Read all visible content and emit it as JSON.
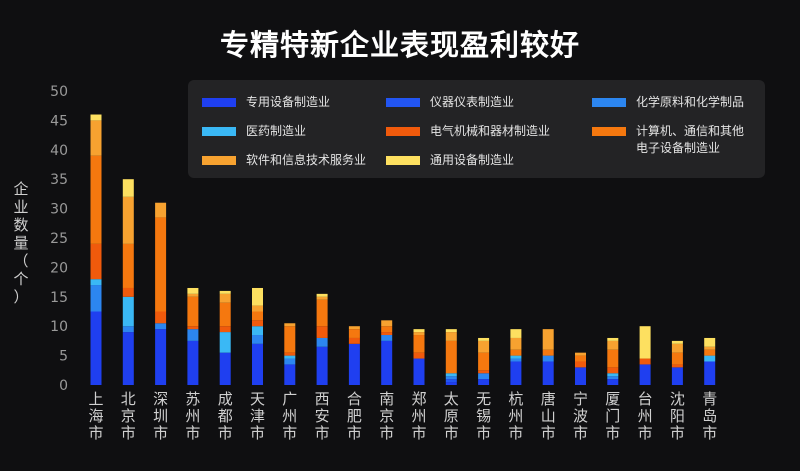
{
  "chart_data": {
    "type": "bar",
    "stacked": true,
    "title": "专精特新企业表现盈利较好",
    "ylabel": "企业数量（个）",
    "ylim": [
      0,
      50
    ],
    "yticks": [
      "0",
      "5",
      "10",
      "15",
      "20",
      "25",
      "30",
      "35",
      "40",
      "45",
      "50"
    ],
    "legend_position": "top-right",
    "categories": [
      "上海市",
      "北京市",
      "深圳市",
      "苏州市",
      "成都市",
      "天津市",
      "广州市",
      "西安市",
      "合肥市",
      "南京市",
      "郑州市",
      "太原市",
      "无锡市",
      "杭州市",
      "唐山市",
      "宁波市",
      "厦门市",
      "台州市",
      "沈阳市",
      "青岛市"
    ],
    "series": [
      {
        "name": "专用设备制造业",
        "color": "#1f3ff0",
        "values": [
          12.5,
          9.0,
          9.5,
          7.5,
          5.5,
          7.0,
          3.5,
          6.5,
          7.0,
          7.5,
          4.5,
          0.5,
          1.0,
          4.0,
          4.0,
          3.0,
          1.0,
          3.5,
          3.0,
          4.0
        ]
      },
      {
        "name": "仪器仪表制造业",
        "color": "#2255f2",
        "values": [
          0.0,
          0.0,
          0.0,
          0.0,
          0.0,
          0.0,
          0.0,
          0.0,
          0.0,
          0.0,
          0.0,
          0.5,
          0.0,
          0.0,
          0.0,
          0.0,
          0.0,
          0.0,
          0.0,
          0.0
        ]
      },
      {
        "name": "化学原料和化学制品",
        "color": "#2c86f0",
        "values": [
          4.5,
          1.0,
          1.0,
          2.0,
          0.0,
          1.5,
          1.0,
          1.5,
          0.0,
          1.0,
          0.0,
          0.5,
          1.0,
          0.5,
          1.0,
          0.0,
          0.5,
          0.0,
          0.0,
          0.0
        ]
      },
      {
        "name": "医药制造业",
        "color": "#3ab8f5",
        "values": [
          1.0,
          5.0,
          0.0,
          0.0,
          3.5,
          1.5,
          0.5,
          0.0,
          0.0,
          0.0,
          0.0,
          0.5,
          0.0,
          0.5,
          0.0,
          0.0,
          0.5,
          0.0,
          0.0,
          1.0
        ]
      },
      {
        "name": "电气机械和器材制造业",
        "color": "#f05a0c",
        "values": [
          6.0,
          1.5,
          2.0,
          0.5,
          1.0,
          1.0,
          0.5,
          2.0,
          1.0,
          0.5,
          1.0,
          0.0,
          0.5,
          0.0,
          0.0,
          1.0,
          1.0,
          1.0,
          0.5,
          0.0
        ]
      },
      {
        "name": "计算机、通信和其他\n电子设备制造业",
        "color": "#f5780f",
        "values": [
          15.0,
          7.5,
          16.0,
          5.0,
          4.0,
          1.5,
          4.5,
          4.5,
          1.5,
          1.0,
          3.0,
          5.5,
          3.0,
          1.0,
          1.0,
          1.0,
          3.0,
          0.0,
          2.0,
          1.0
        ]
      },
      {
        "name": "软件和信息技术服务业",
        "color": "#f7a230",
        "values": [
          6.0,
          8.0,
          2.5,
          0.5,
          1.5,
          1.0,
          0.5,
          0.5,
          0.5,
          1.0,
          0.5,
          1.5,
          2.0,
          2.0,
          3.5,
          0.5,
          1.5,
          0.0,
          1.5,
          0.5
        ]
      },
      {
        "name": "通用设备制造业",
        "color": "#fde060",
        "values": [
          1.0,
          3.0,
          0.0,
          1.0,
          0.5,
          3.0,
          0.0,
          0.5,
          0.0,
          0.0,
          0.5,
          0.5,
          0.5,
          1.5,
          0.0,
          0.0,
          0.5,
          5.5,
          0.5,
          1.5
        ]
      }
    ]
  }
}
